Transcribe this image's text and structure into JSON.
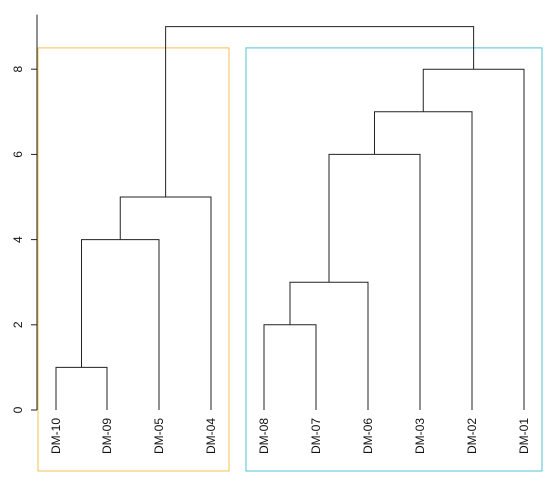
{
  "chart_data": {
    "type": "dendrogram",
    "title": "",
    "xlabel": "",
    "ylabel": "",
    "ylim": [
      0,
      9
    ],
    "y_ticks": [
      0,
      2,
      4,
      6,
      8
    ],
    "leaves": [
      "DM-10",
      "DM-09",
      "DM-05",
      "DM-04",
      "DM-08",
      "DM-07",
      "DM-06",
      "DM-03",
      "DM-02",
      "DM-01"
    ],
    "merges": [
      {
        "left": "DM-10",
        "right": "DM-09",
        "height": 1
      },
      {
        "left": "DM-08",
        "right": "DM-07",
        "height": 2
      },
      {
        "left": "DM-08,DM-07",
        "right": "DM-06",
        "height": 3
      },
      {
        "left": "DM-10,DM-09",
        "right": "DM-05",
        "height": 4
      },
      {
        "left": "DM-10,DM-09,DM-05",
        "right": "DM-04",
        "height": 5
      },
      {
        "left": "DM-08,DM-07,DM-06",
        "right": "DM-03",
        "height": 6
      },
      {
        "left": "DM-08,DM-07,DM-06,DM-03",
        "right": "DM-02",
        "height": 7
      },
      {
        "left": "DM-08,DM-07,DM-06,DM-03,DM-02",
        "right": "DM-01",
        "height": 8
      },
      {
        "left": "DM-10,DM-09,DM-05,DM-04",
        "right": "DM-08,DM-07,DM-06,DM-03,DM-02,DM-01",
        "height": 9
      }
    ],
    "cluster_boxes": [
      {
        "leaves": [
          "DM-10",
          "DM-09",
          "DM-05",
          "DM-04"
        ],
        "color": "#f2c14e"
      },
      {
        "leaves": [
          "DM-08",
          "DM-07",
          "DM-06",
          "DM-03",
          "DM-02",
          "DM-01"
        ],
        "color": "#4fc3d9"
      }
    ],
    "grid": false
  }
}
